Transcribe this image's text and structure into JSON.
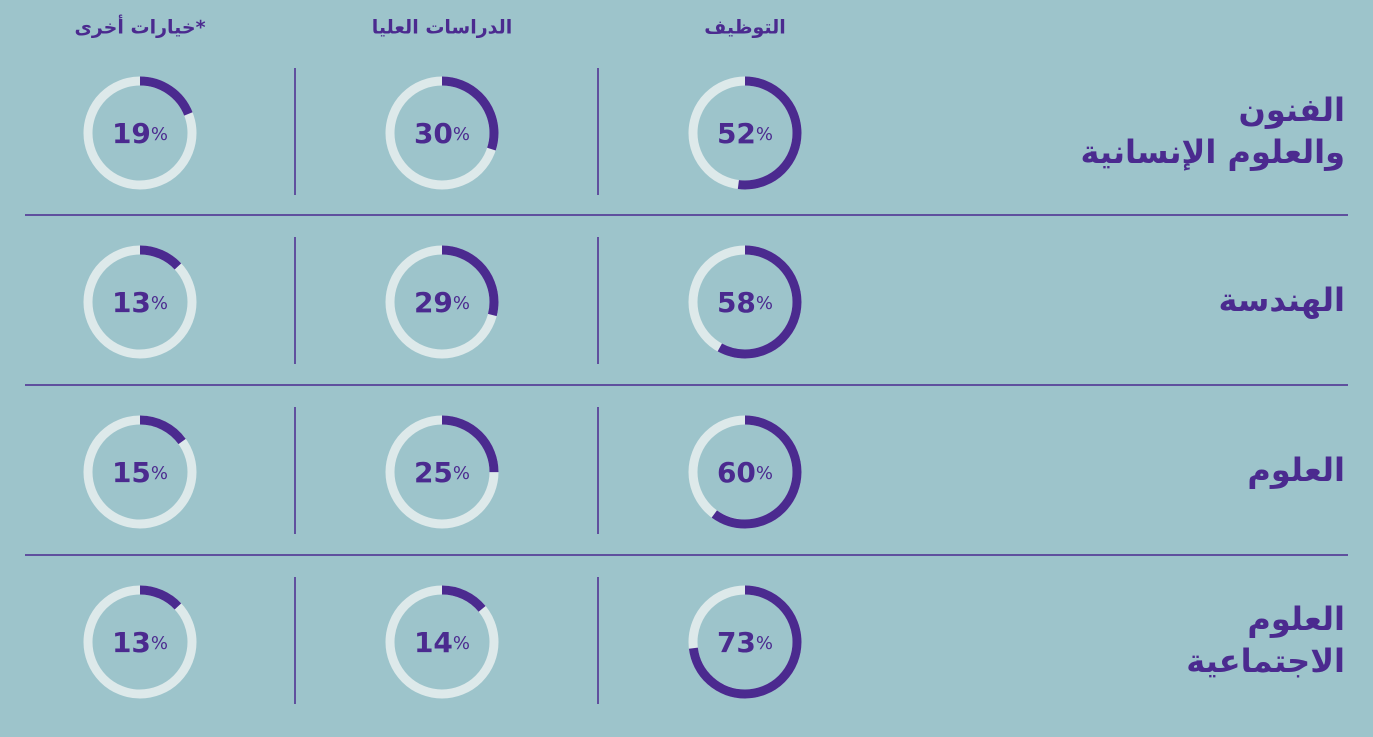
{
  "columns": [
    "التوظيف",
    "الدراسات العليا",
    "خيارات أخرى*"
  ],
  "unit": "%",
  "rows": [
    {
      "label": [
        "الفنون",
        "والعلوم الإنسانية"
      ],
      "values": [
        52,
        30,
        19
      ]
    },
    {
      "label": [
        "الهندسة"
      ],
      "values": [
        58,
        29,
        13
      ]
    },
    {
      "label": [
        "العلوم"
      ],
      "values": [
        60,
        25,
        15
      ]
    },
    {
      "label": [
        "العلوم",
        "الاجتماعية"
      ],
      "values": [
        73,
        14,
        13
      ]
    }
  ]
}
